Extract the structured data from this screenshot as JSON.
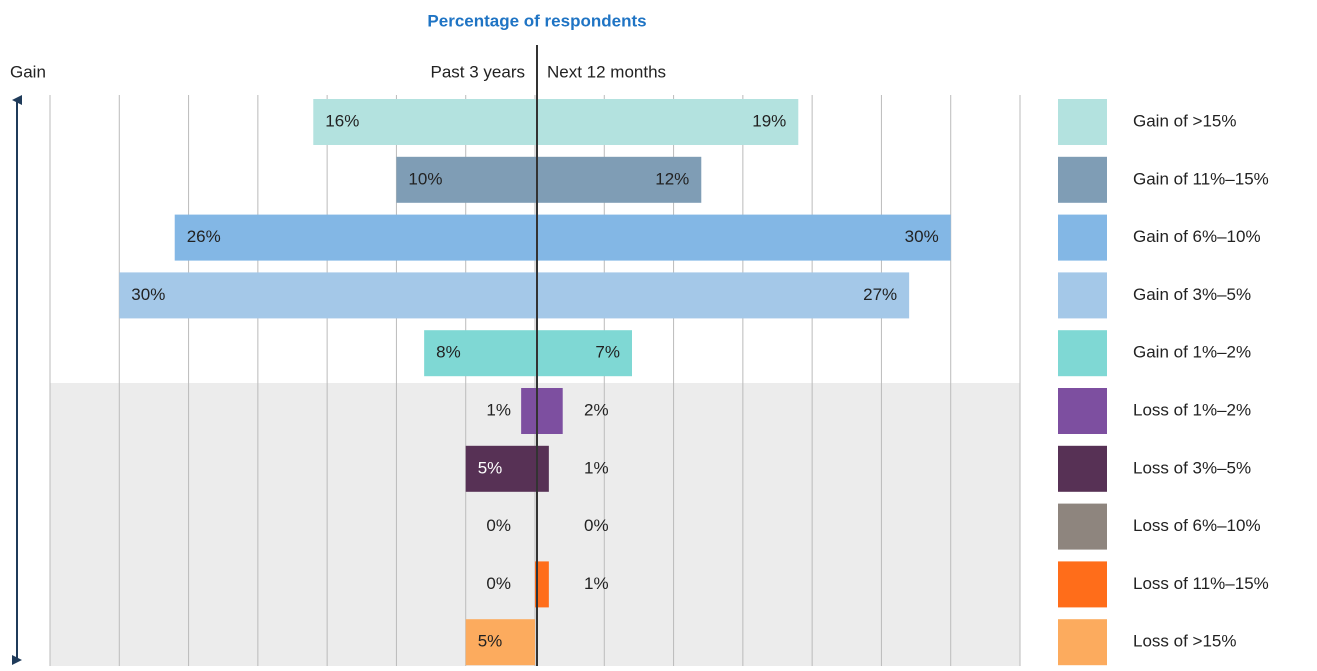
{
  "chart_data": {
    "type": "diverging-bar",
    "title": "Percentage of respondents",
    "axis_label": "Gain",
    "categories": [
      "Gain of >15%",
      "Gain of 11%–15%",
      "Gain of 6%–10%",
      "Gain of 3%–5%",
      "Gain of 1%–2%",
      "Loss of 1%–2%",
      "Loss of 3%–5%",
      "Loss of 6%–10%",
      "Loss of 11%–15%",
      "Loss of >15%"
    ],
    "colors": [
      "#b3e2df",
      "#7f9db5",
      "#83b7e5",
      "#a4c8e8",
      "#7fd8d4",
      "#7d4fa0",
      "#573155",
      "#8e857e",
      "#ff6d1a",
      "#fcab5e"
    ],
    "series": [
      {
        "name": "Past 3 years",
        "side": "left",
        "values": [
          16,
          10,
          26,
          30,
          8,
          1,
          5,
          0,
          0,
          5
        ],
        "value_labels": [
          "16%",
          "10%",
          "26%",
          "30%",
          "8%",
          "1%",
          "5%",
          "0%",
          "0%",
          "5%"
        ]
      },
      {
        "name": "Next 12 months",
        "side": "right",
        "values": [
          19,
          12,
          30,
          27,
          7,
          2,
          1,
          0,
          1,
          null
        ],
        "value_labels": [
          "19%",
          "12%",
          "30%",
          "27%",
          "7%",
          "2%",
          "1%",
          "0%",
          "1%",
          null
        ]
      }
    ],
    "xlim": [
      -35,
      35
    ],
    "xticks": [
      -35,
      -30,
      -25,
      -20,
      -15,
      -10,
      -5,
      0,
      5,
      10,
      15,
      20,
      25,
      30,
      35
    ],
    "grid": true
  }
}
